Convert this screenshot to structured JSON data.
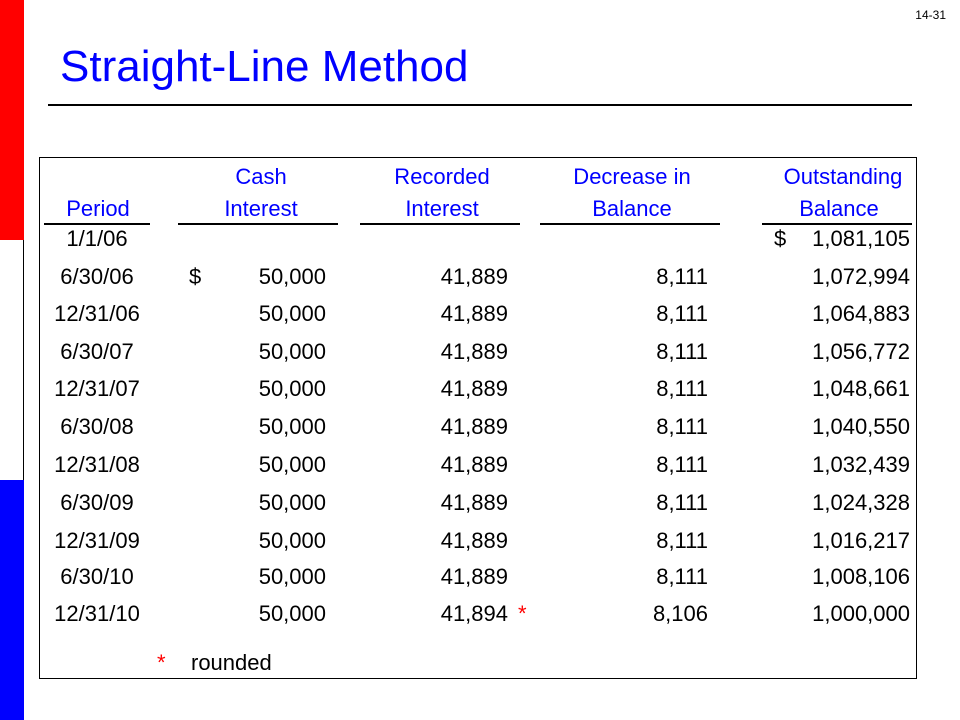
{
  "slide_number": "14-31",
  "title": "Straight-Line Method",
  "headers": {
    "period": "Period",
    "cash_line1": "Cash",
    "cash_line2": "Interest",
    "recorded_line1": "Recorded",
    "recorded_line2": "Interest",
    "decrease_line1": "Decrease in",
    "decrease_line2": "Balance",
    "outstanding_line1": "Outstanding",
    "outstanding_line2": "Balance"
  },
  "dollar_sign": "$",
  "rows": [
    {
      "period": "1/1/06",
      "cash": "",
      "recorded": "",
      "decrease": "",
      "balance": "1,081,105",
      "cash_dollar": "",
      "balance_dollar": "$",
      "mark": ""
    },
    {
      "period": "6/30/06",
      "cash": "50,000",
      "recorded": "41,889",
      "decrease": "8,111",
      "balance": "1,072,994",
      "cash_dollar": "$",
      "balance_dollar": "",
      "mark": ""
    },
    {
      "period": "12/31/06",
      "cash": "50,000",
      "recorded": "41,889",
      "decrease": "8,111",
      "balance": "1,064,883",
      "cash_dollar": "",
      "balance_dollar": "",
      "mark": ""
    },
    {
      "period": "6/30/07",
      "cash": "50,000",
      "recorded": "41,889",
      "decrease": "8,111",
      "balance": "1,056,772",
      "cash_dollar": "",
      "balance_dollar": "",
      "mark": ""
    },
    {
      "period": "12/31/07",
      "cash": "50,000",
      "recorded": "41,889",
      "decrease": "8,111",
      "balance": "1,048,661",
      "cash_dollar": "",
      "balance_dollar": "",
      "mark": ""
    },
    {
      "period": "6/30/08",
      "cash": "50,000",
      "recorded": "41,889",
      "decrease": "8,111",
      "balance": "1,040,550",
      "cash_dollar": "",
      "balance_dollar": "",
      "mark": ""
    },
    {
      "period": "12/31/08",
      "cash": "50,000",
      "recorded": "41,889",
      "decrease": "8,111",
      "balance": "1,032,439",
      "cash_dollar": "",
      "balance_dollar": "",
      "mark": ""
    },
    {
      "period": "6/30/09",
      "cash": "50,000",
      "recorded": "41,889",
      "decrease": "8,111",
      "balance": "1,024,328",
      "cash_dollar": "",
      "balance_dollar": "",
      "mark": ""
    },
    {
      "period": "12/31/09",
      "cash": "50,000",
      "recorded": "41,889",
      "decrease": "8,111",
      "balance": "1,016,217",
      "cash_dollar": "",
      "balance_dollar": "",
      "mark": ""
    },
    {
      "period": "6/30/10",
      "cash": "50,000",
      "recorded": "41,889",
      "decrease": "8,111",
      "balance": "1,008,106",
      "cash_dollar": "",
      "balance_dollar": "",
      "mark": ""
    },
    {
      "period": "12/31/10",
      "cash": "50,000",
      "recorded": "41,894",
      "decrease": "8,106",
      "balance": "1,000,000",
      "cash_dollar": "",
      "balance_dollar": "",
      "mark": "*"
    }
  ],
  "footnote": {
    "mark": "*",
    "text": "rounded"
  },
  "colors": {
    "title": "#0000ff",
    "header": "#0000ff",
    "mark": "#ff0000",
    "bar_top": "#ff0000",
    "bar_bottom": "#0000ff"
  }
}
